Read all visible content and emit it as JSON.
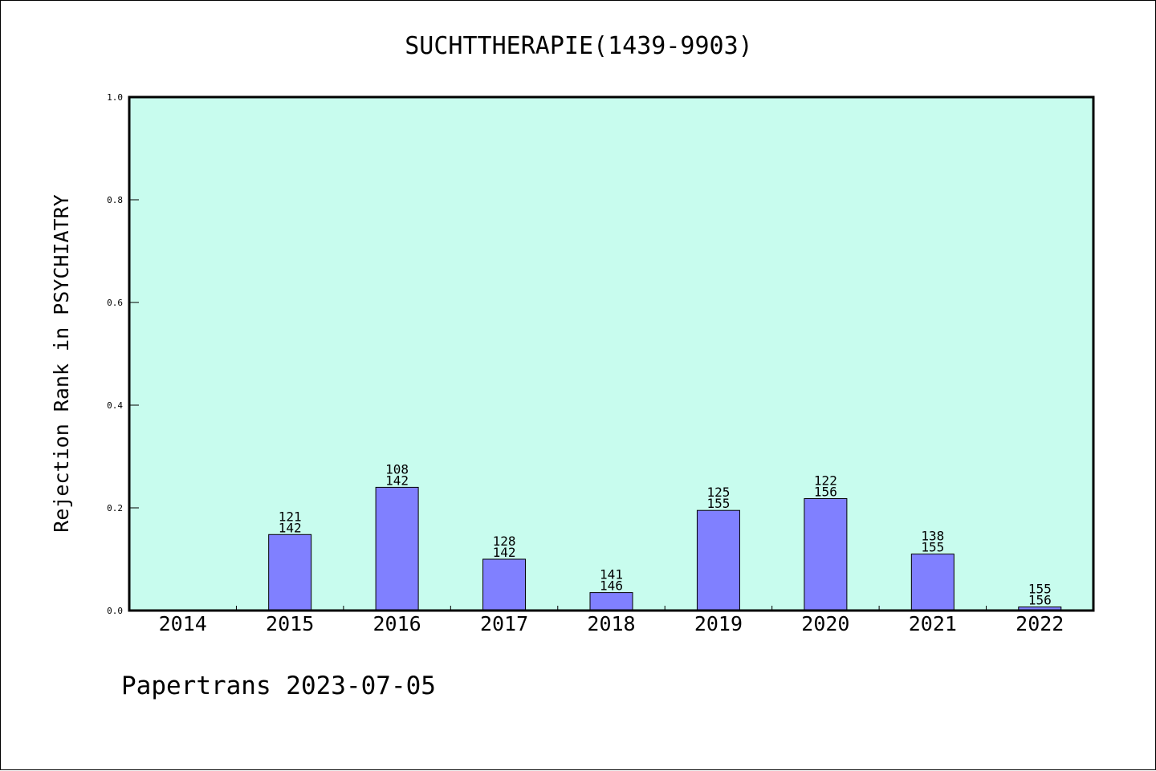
{
  "chart_data": {
    "type": "bar",
    "title": "SUCHTTHERAPIE(1439-9903)",
    "ylabel": "Rejection Rank in PSYCHIATRY",
    "xlabel": "",
    "ylim": [
      0,
      1.0
    ],
    "yticks": [
      "0.0",
      "0.2",
      "0.4",
      "0.6",
      "0.8",
      "1.0"
    ],
    "categories": [
      "2014",
      "2015",
      "2016",
      "2017",
      "2018",
      "2019",
      "2020",
      "2021",
      "2022"
    ],
    "values": [
      0,
      0.148,
      0.24,
      0.1,
      0.035,
      0.195,
      0.218,
      0.11,
      0.007
    ],
    "labels_top": [
      "",
      "121",
      "108",
      "128",
      "141",
      "125",
      "122",
      "138",
      "155"
    ],
    "labels_bottom": [
      "",
      "142",
      "142",
      "142",
      "146",
      "155",
      "156",
      "155",
      "156"
    ],
    "grid": false,
    "legend": "none",
    "colors": {
      "plot_background": "#c8fcee",
      "bar_fill": "#8080ff",
      "bar_stroke": "#000000"
    }
  },
  "footer": {
    "text": "Papertrans 2023-07-05"
  }
}
